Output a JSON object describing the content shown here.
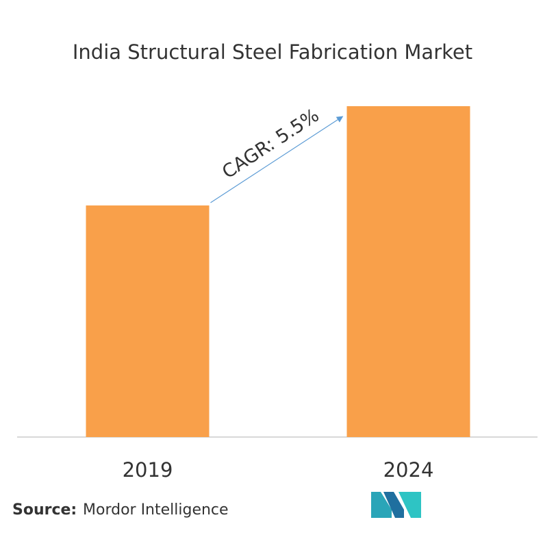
{
  "chart_data": {
    "type": "bar",
    "title": "India Structural Steel Fabrication Market",
    "categories": [
      "2019",
      "2024"
    ],
    "values": [
      70,
      100
    ],
    "color": "#f9a04a",
    "ylim": [
      0,
      100
    ],
    "annotation": "CAGR: 5.5%",
    "source_label": "Source:",
    "source_name": "Mordor Intelligence"
  }
}
